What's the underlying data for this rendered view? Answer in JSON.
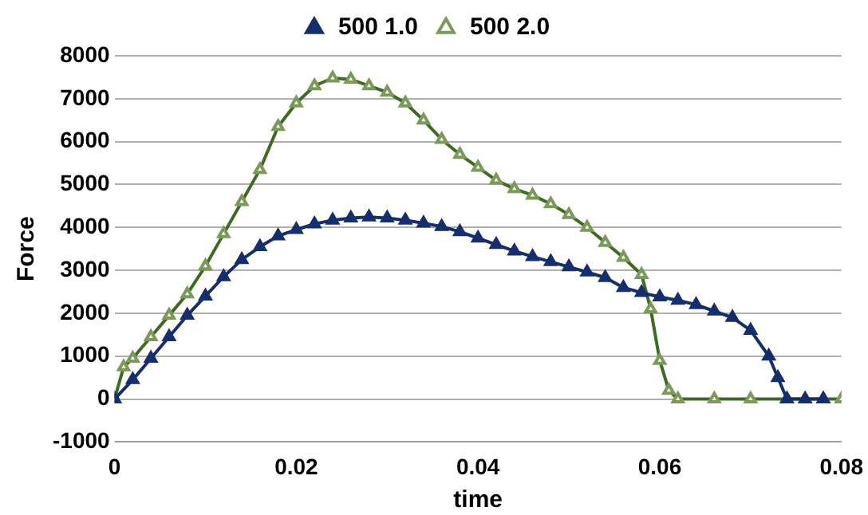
{
  "chart_data": {
    "type": "line",
    "xlabel": "time",
    "ylabel": "Force",
    "xlim": [
      0,
      0.08
    ],
    "xticks": [
      0,
      0.02,
      0.04,
      0.06,
      0.08
    ],
    "ylim": [
      -1000,
      8000
    ],
    "yticks": [
      -1000,
      0,
      1000,
      2000,
      3000,
      4000,
      5000,
      6000,
      7000,
      8000
    ],
    "grid": "y",
    "legend": "top",
    "marker": "triangle",
    "line_style": "solid",
    "series": [
      {
        "name": "500 1.0",
        "color": "#142e6e",
        "x": [
          0,
          0.002,
          0.004,
          0.006,
          0.008,
          0.01,
          0.012,
          0.014,
          0.016,
          0.018,
          0.02,
          0.022,
          0.024,
          0.026,
          0.028,
          0.03,
          0.032,
          0.034,
          0.036,
          0.038,
          0.04,
          0.042,
          0.044,
          0.046,
          0.048,
          0.05,
          0.052,
          0.054,
          0.056,
          0.058,
          0.06,
          0.062,
          0.064,
          0.066,
          0.068,
          0.07,
          0.072,
          0.073,
          0.074,
          0.076,
          0.078
        ],
        "values": [
          0,
          450,
          950,
          1450,
          1950,
          2400,
          2850,
          3250,
          3550,
          3800,
          3950,
          4080,
          4170,
          4220,
          4240,
          4220,
          4170,
          4100,
          4020,
          3900,
          3750,
          3600,
          3450,
          3320,
          3200,
          3080,
          2960,
          2830,
          2600,
          2480,
          2380,
          2300,
          2200,
          2050,
          1900,
          1600,
          1000,
          500,
          0,
          0,
          0
        ]
      },
      {
        "name": "500 2.0",
        "color": "#3f6a23",
        "x": [
          0,
          0.001,
          0.002,
          0.004,
          0.006,
          0.008,
          0.01,
          0.012,
          0.014,
          0.016,
          0.018,
          0.02,
          0.022,
          0.024,
          0.026,
          0.028,
          0.03,
          0.032,
          0.034,
          0.036,
          0.038,
          0.04,
          0.042,
          0.044,
          0.046,
          0.048,
          0.05,
          0.052,
          0.054,
          0.056,
          0.058,
          0.059,
          0.06,
          0.061,
          0.062,
          0.066,
          0.07,
          0.074,
          0.078,
          0.08
        ],
        "values": [
          0,
          750,
          950,
          1450,
          1950,
          2450,
          3100,
          3850,
          4600,
          5350,
          6350,
          6900,
          7300,
          7480,
          7450,
          7300,
          7150,
          6900,
          6500,
          6050,
          5700,
          5400,
          5100,
          4900,
          4750,
          4550,
          4300,
          4000,
          3650,
          3300,
          2900,
          2100,
          900,
          200,
          0,
          0,
          0,
          0,
          0,
          0
        ]
      }
    ]
  }
}
